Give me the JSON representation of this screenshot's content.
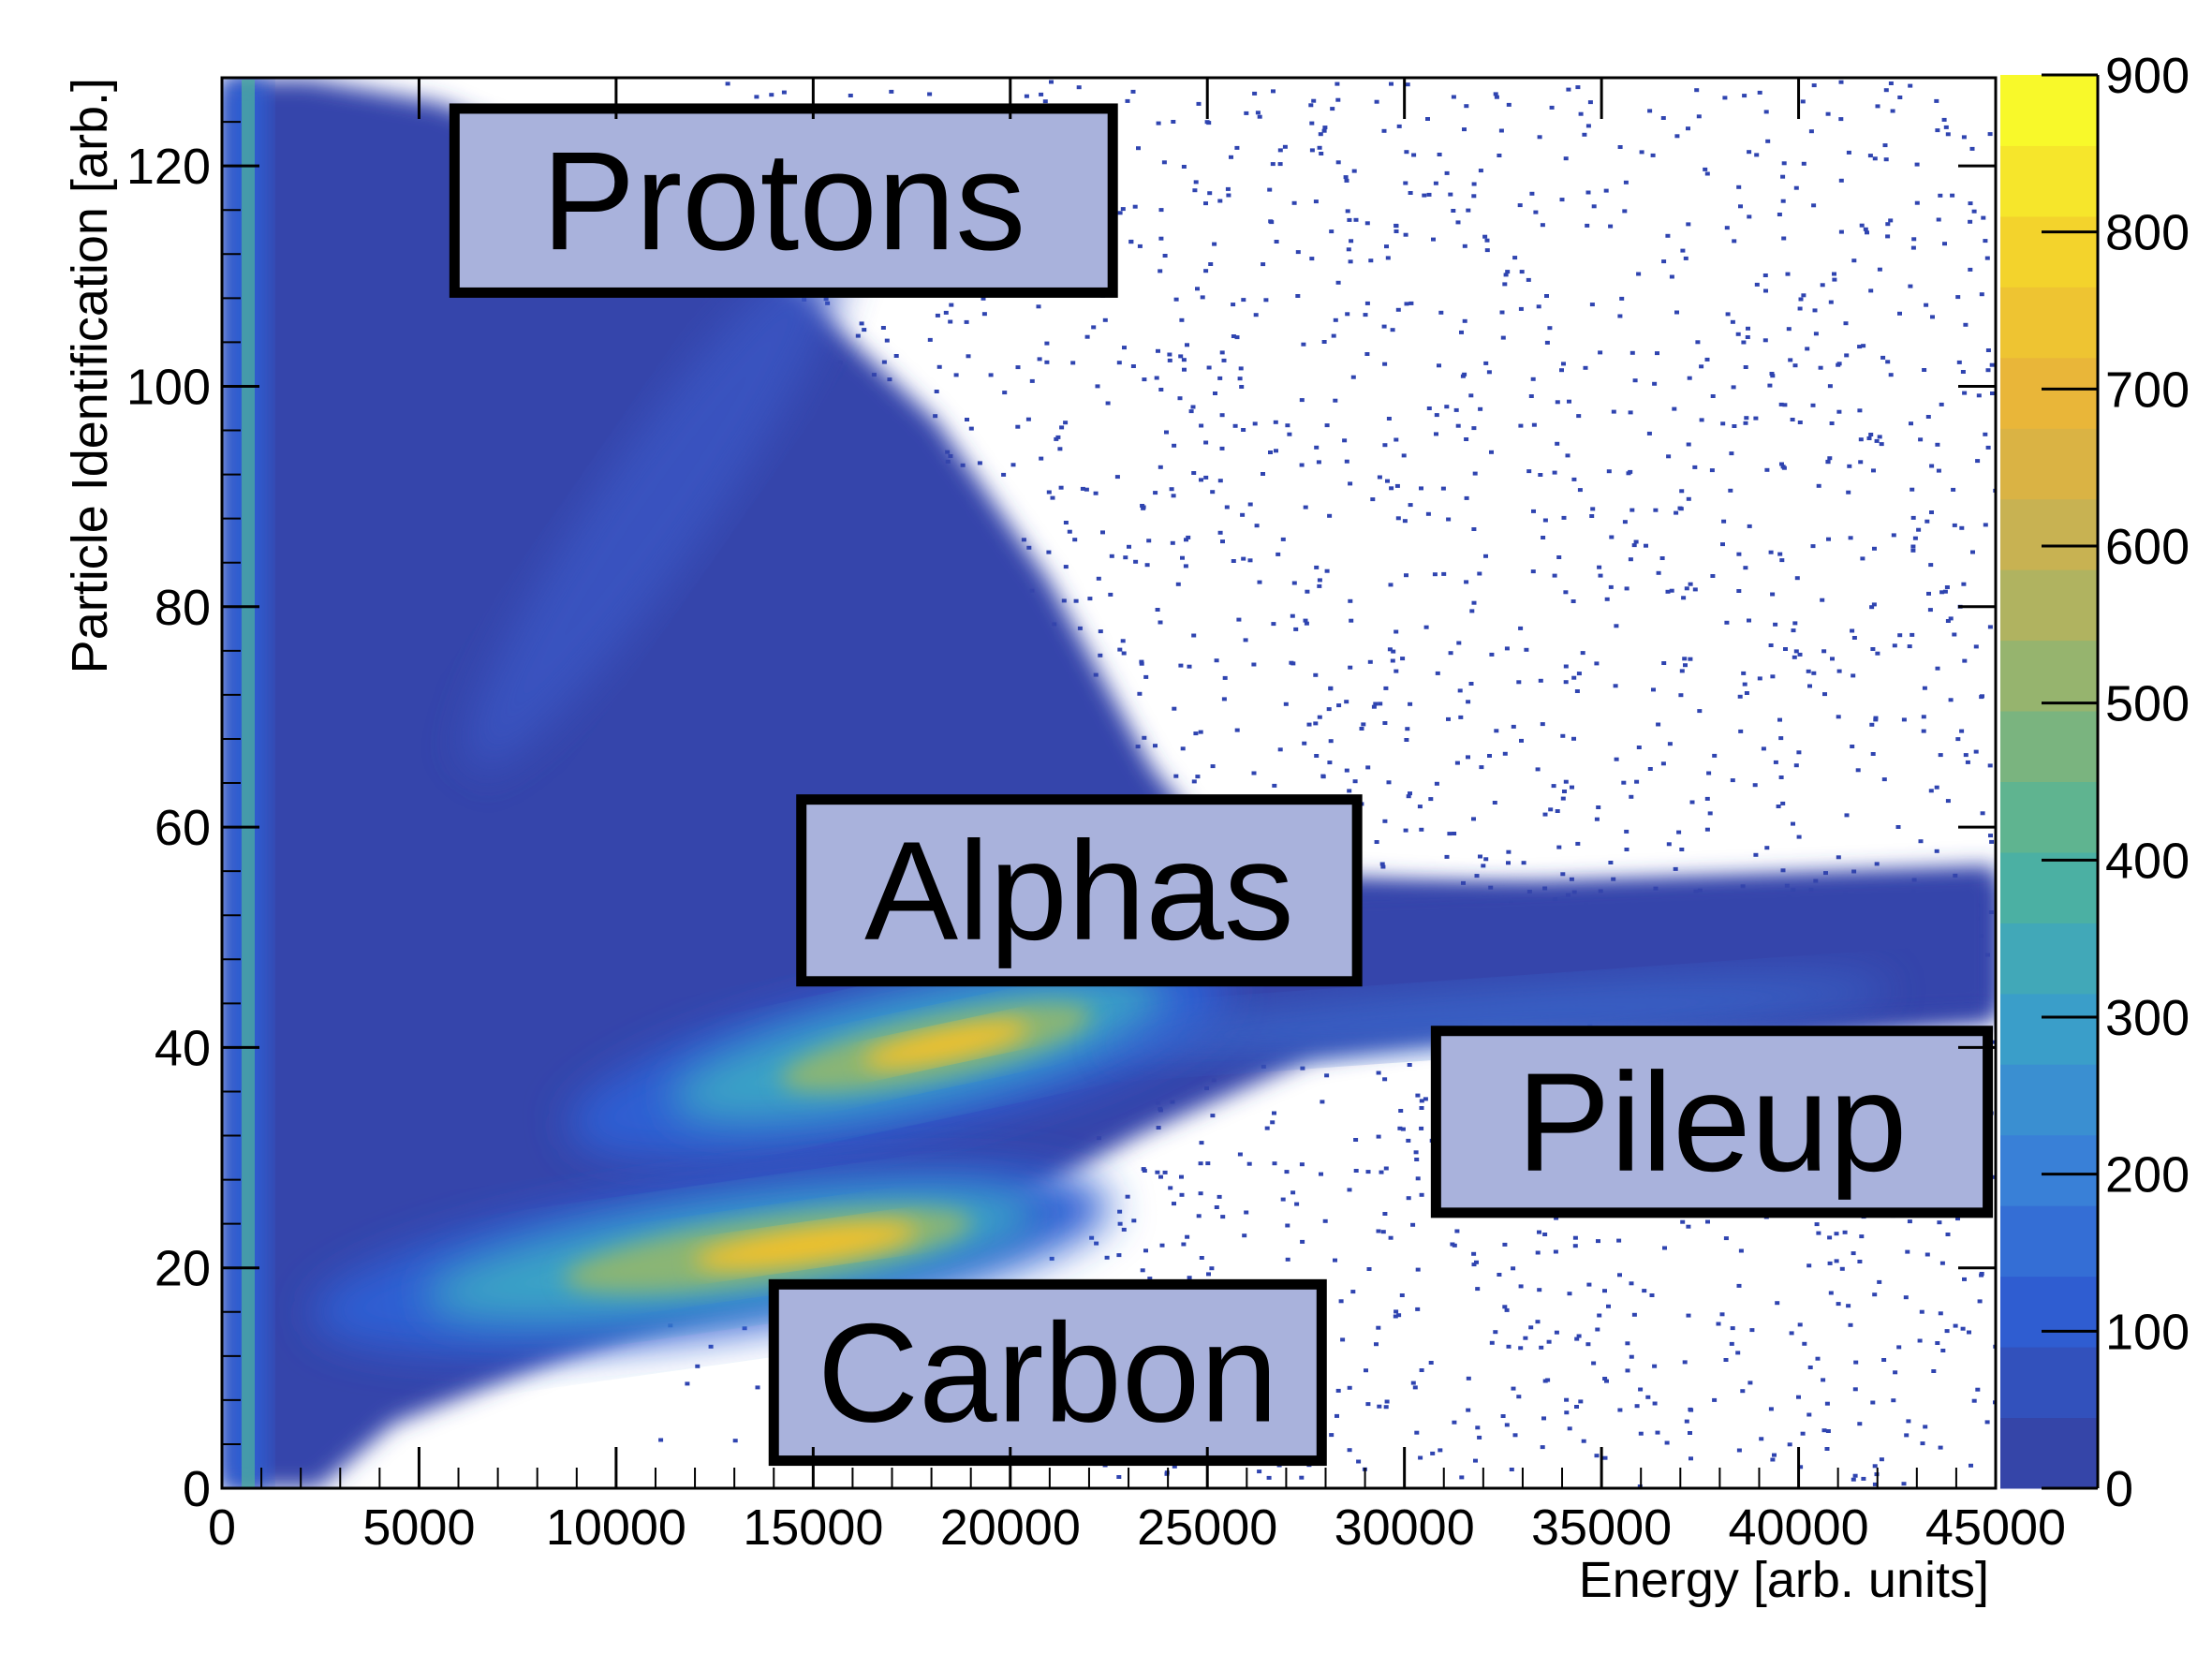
{
  "chart_data": {
    "type": "heatmap",
    "title": "",
    "xlabel": "Energy [arb. units]",
    "ylabel": "Particle Identification [arb.]",
    "xlim": [
      0,
      45000
    ],
    "ylim": [
      0,
      128
    ],
    "x_ticks": [
      0,
      5000,
      10000,
      15000,
      20000,
      25000,
      30000,
      35000,
      40000,
      45000
    ],
    "y_ticks": [
      0,
      20,
      40,
      60,
      80,
      100,
      120
    ],
    "x_tick_labels": [
      "0",
      "5000",
      "10000",
      "15000",
      "20000",
      "25000",
      "30000",
      "35000",
      "40000",
      "45000"
    ],
    "y_tick_labels": [
      "0",
      "20",
      "40",
      "60",
      "80",
      "100",
      "120"
    ],
    "colorbar": {
      "range": [
        0,
        900
      ],
      "ticks": [
        0,
        100,
        200,
        300,
        400,
        500,
        600,
        700,
        800,
        900
      ],
      "tick_labels": [
        "0",
        "100",
        "200",
        "300",
        "400",
        "500",
        "600",
        "700",
        "800",
        "900"
      ],
      "colors": [
        "#3545a8",
        "#2f5ed3",
        "#3a84d8",
        "#3aa3c6",
        "#4fb39a",
        "#8ab575",
        "#c2b256",
        "#e8b33a",
        "#f3d12c",
        "#f8f92a"
      ]
    },
    "annotations": [
      {
        "label": "Protons",
        "x0": 5900,
        "x1": 22600,
        "y0": 108.5,
        "y1": 125.2
      },
      {
        "label": "Alphas",
        "x0": 14700,
        "x1": 28800,
        "y0": 46.0,
        "y1": 62.5
      },
      {
        "label": "Pileup",
        "x0": 30800,
        "x1": 44800,
        "y0": 25.0,
        "y1": 41.5
      },
      {
        "label": "Carbon",
        "x0": 14000,
        "x1": 27900,
        "y0": 2.5,
        "y1": 18.5
      }
    ],
    "regions": [
      {
        "name": "Carbon",
        "x_center": 16000,
        "y_center": 21.0,
        "peak_count": 850
      },
      {
        "name": "Alphas",
        "x_center": 18500,
        "y_center": 40.0,
        "peak_count": 800
      },
      {
        "name": "Protons",
        "x_center": 12000,
        "y_center": 95.0,
        "peak_count": 150
      },
      {
        "name": "Pileup",
        "x_center": 38000,
        "y_center": 45.0,
        "peak_count": 120
      }
    ]
  }
}
